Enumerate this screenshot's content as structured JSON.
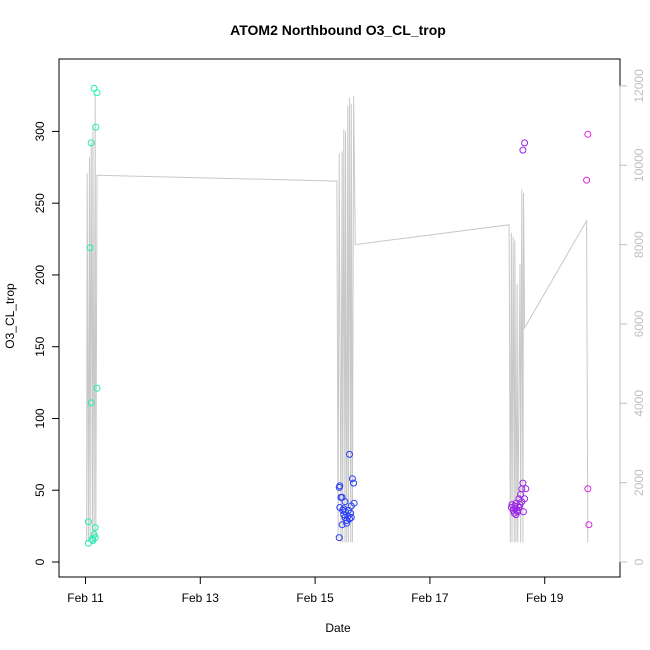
{
  "chart_data": {
    "type": "scatter",
    "title": "ATOM2 Northbound O3_CL_trop",
    "xlabel": "Date",
    "ylabel": "O3_CL_trop",
    "y2label": "",
    "x_ticks": [
      "Feb 11",
      "Feb 13",
      "Feb 15",
      "Feb 17",
      "Feb 19"
    ],
    "x_tick_days": [
      11,
      13,
      15,
      17,
      19
    ],
    "xlim": [
      10.8,
      20.05
    ],
    "y_ticks": [
      0,
      50,
      100,
      150,
      200,
      250,
      300
    ],
    "ylim": [
      0,
      340
    ],
    "y2_ticks": [
      0,
      2000,
      4000,
      6000,
      8000,
      10000,
      12000
    ],
    "y2lim": [
      0,
      12300
    ],
    "grid": false,
    "colors": {
      "axis": "#000000",
      "secondary_axis": "#bfbfbf",
      "altitude_line": "#c8c8c8",
      "points": [
        "#1cf0b0",
        "#2a3ef5",
        "#9b22e6",
        "#e21ce6"
      ]
    },
    "series": [
      {
        "color": "#1cf0b0",
        "points": [
          [
            11.05,
            28
          ],
          [
            11.05,
            13
          ],
          [
            11.08,
            219
          ],
          [
            11.1,
            292
          ],
          [
            11.1,
            111
          ],
          [
            11.12,
            16
          ],
          [
            11.13,
            15
          ],
          [
            11.15,
            330
          ],
          [
            11.15,
            19
          ],
          [
            11.17,
            17
          ],
          [
            11.17,
            24
          ],
          [
            11.18,
            303
          ],
          [
            11.2,
            327
          ],
          [
            11.2,
            121
          ]
        ]
      },
      {
        "color": "#2a3ef5",
        "points": [
          [
            15.42,
            17
          ],
          [
            15.42,
            52
          ],
          [
            15.43,
            53
          ],
          [
            15.43,
            38
          ],
          [
            15.45,
            45
          ],
          [
            15.47,
            45
          ],
          [
            15.47,
            26
          ],
          [
            15.48,
            36
          ],
          [
            15.5,
            37
          ],
          [
            15.5,
            33
          ],
          [
            15.52,
            42
          ],
          [
            15.52,
            31
          ],
          [
            15.53,
            35
          ],
          [
            15.55,
            29
          ],
          [
            15.55,
            27
          ],
          [
            15.57,
            32
          ],
          [
            15.58,
            36
          ],
          [
            15.6,
            75
          ],
          [
            15.6,
            30
          ],
          [
            15.62,
            34
          ],
          [
            15.63,
            39
          ],
          [
            15.63,
            31
          ],
          [
            15.65,
            58
          ],
          [
            15.67,
            55
          ],
          [
            15.68,
            41
          ]
        ]
      },
      {
        "color": "#9b22e6",
        "points": [
          [
            18.42,
            38
          ],
          [
            18.43,
            40
          ],
          [
            18.45,
            36
          ],
          [
            18.47,
            34
          ],
          [
            18.48,
            39
          ],
          [
            18.48,
            37
          ],
          [
            18.5,
            33
          ],
          [
            18.5,
            41
          ],
          [
            18.52,
            36
          ],
          [
            18.53,
            35
          ],
          [
            18.55,
            38
          ],
          [
            18.55,
            44
          ],
          [
            18.57,
            40
          ],
          [
            18.58,
            47
          ],
          [
            18.6,
            51
          ],
          [
            18.6,
            42
          ],
          [
            18.62,
            287
          ],
          [
            18.62,
            55
          ],
          [
            18.63,
            35
          ],
          [
            18.65,
            292
          ],
          [
            18.65,
            44
          ],
          [
            18.67,
            51
          ]
        ]
      },
      {
        "color": "#e21ce6",
        "points": [
          [
            19.73,
            266
          ],
          [
            19.75,
            298
          ],
          [
            19.75,
            51
          ],
          [
            19.77,
            26
          ]
        ]
      }
    ],
    "altitude": [
      [
        11.02,
        500
      ],
      [
        11.03,
        9800
      ],
      [
        11.05,
        500
      ],
      [
        11.07,
        10200
      ],
      [
        11.08,
        500
      ],
      [
        11.1,
        10600
      ],
      [
        11.12,
        500
      ],
      [
        11.13,
        11000
      ],
      [
        11.15,
        500
      ],
      [
        11.17,
        11800
      ],
      [
        11.18,
        600
      ],
      [
        11.2,
        9750
      ],
      [
        15.38,
        9600
      ],
      [
        15.4,
        600
      ],
      [
        15.42,
        10300
      ],
      [
        15.45,
        500
      ],
      [
        15.47,
        10350
      ],
      [
        15.48,
        500
      ],
      [
        15.5,
        10900
      ],
      [
        15.52,
        500
      ],
      [
        15.53,
        10850
      ],
      [
        15.55,
        500
      ],
      [
        15.57,
        11500
      ],
      [
        15.58,
        500
      ],
      [
        15.6,
        11700
      ],
      [
        15.62,
        500
      ],
      [
        15.63,
        11550
      ],
      [
        15.65,
        500
      ],
      [
        15.67,
        11750
      ],
      [
        15.7,
        8000
      ],
      [
        18.38,
        8500
      ],
      [
        18.4,
        500
      ],
      [
        18.42,
        8300
      ],
      [
        18.43,
        500
      ],
      [
        18.45,
        8200
      ],
      [
        18.47,
        500
      ],
      [
        18.48,
        8100
      ],
      [
        18.5,
        500
      ],
      [
        18.52,
        7000
      ],
      [
        18.53,
        500
      ],
      [
        18.57,
        7500
      ],
      [
        18.58,
        500
      ],
      [
        18.6,
        9400
      ],
      [
        18.62,
        500
      ],
      [
        18.63,
        9300
      ],
      [
        18.65,
        5900
      ],
      [
        19.73,
        8600
      ],
      [
        19.75,
        500
      ]
    ]
  }
}
